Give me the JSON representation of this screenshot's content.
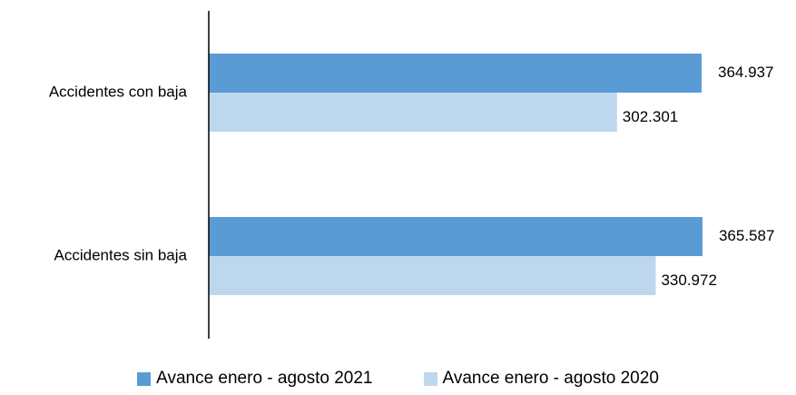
{
  "chart_data": {
    "type": "bar",
    "orientation": "horizontal",
    "categories": [
      "Accidentes con baja",
      "Accidentes sin baja"
    ],
    "series": [
      {
        "name": "Avance enero - agosto 2021",
        "values": [
          364937,
          365587
        ],
        "labels": [
          "364.937",
          "365.587"
        ],
        "color": "#5b9bd5"
      },
      {
        "name": "Avance enero - agosto 2020",
        "values": [
          302301,
          330972
        ],
        "labels": [
          "302.301",
          "330.972"
        ],
        "color": "#bdd7ee"
      }
    ],
    "xlim": [
      0,
      400000
    ],
    "grid": false,
    "legend_position": "bottom"
  }
}
